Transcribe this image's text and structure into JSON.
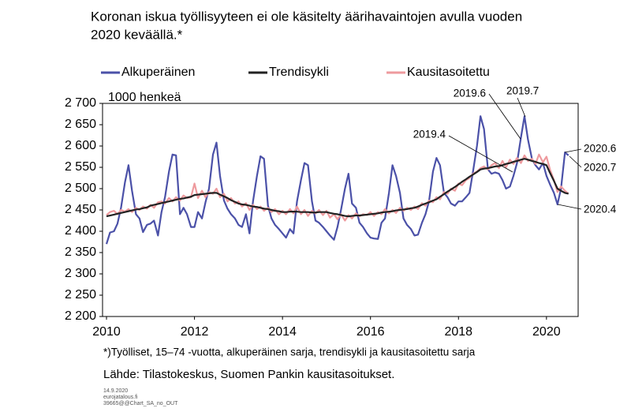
{
  "chart_data": {
    "type": "line",
    "title": [
      "Koronan iskua työllisyyteen ei ole käsitelty äärihavaintojen avulla vuoden",
      "2020 keväällä.*"
    ],
    "ylabel": "1000 henkeä",
    "footnote": "*)Työlliset, 15–74 -vuotta, alkuperäinen sarja, trendisykli ja kausitasoitettu sarja",
    "source": "Lähde: Tilastokeskus, Suomen Pankin kausitasoitukset.",
    "meta": [
      "14.9.2020",
      "eurojatalous.fi",
      "39665@@Chart_SA_no_OUT"
    ],
    "xlim": [
      2009.91,
      2020.72
    ],
    "xticks": [
      2010,
      2012,
      2014,
      2016,
      2018,
      2020
    ],
    "ylim": [
      2200,
      2700
    ],
    "yticks": [
      {
        "value": 2200,
        "label": "2 200"
      },
      {
        "value": 2250,
        "label": "2 250"
      },
      {
        "value": 2300,
        "label": "2 300"
      },
      {
        "value": 2350,
        "label": "2 350"
      },
      {
        "value": 2400,
        "label": "2 400"
      },
      {
        "value": 2450,
        "label": "2 450"
      },
      {
        "value": 2500,
        "label": "2 500"
      },
      {
        "value": 2550,
        "label": "2 550"
      },
      {
        "value": 2600,
        "label": "2 600"
      },
      {
        "value": 2650,
        "label": "2 650"
      },
      {
        "value": 2700,
        "label": "2 700"
      }
    ],
    "grid": false,
    "legend": "top",
    "annotations": [
      "2019.6",
      "2019.7",
      "2019.4",
      "2020.6",
      "2020.7",
      "2020.4"
    ],
    "x": [
      2010.0,
      2010.08,
      2010.17,
      2010.25,
      2010.33,
      2010.42,
      2010.5,
      2010.58,
      2010.67,
      2010.75,
      2010.83,
      2010.92,
      2011.0,
      2011.08,
      2011.17,
      2011.25,
      2011.33,
      2011.42,
      2011.5,
      2011.58,
      2011.67,
      2011.75,
      2011.83,
      2011.92,
      2012.0,
      2012.08,
      2012.17,
      2012.25,
      2012.33,
      2012.42,
      2012.5,
      2012.58,
      2012.67,
      2012.75,
      2012.83,
      2012.92,
      2013.0,
      2013.08,
      2013.17,
      2013.25,
      2013.33,
      2013.42,
      2013.5,
      2013.58,
      2013.67,
      2013.75,
      2013.83,
      2013.92,
      2014.0,
      2014.08,
      2014.17,
      2014.25,
      2014.33,
      2014.42,
      2014.5,
      2014.58,
      2014.67,
      2014.75,
      2014.83,
      2014.92,
      2015.0,
      2015.08,
      2015.17,
      2015.25,
      2015.33,
      2015.42,
      2015.5,
      2015.58,
      2015.67,
      2015.75,
      2015.83,
      2015.92,
      2016.0,
      2016.08,
      2016.17,
      2016.25,
      2016.33,
      2016.42,
      2016.5,
      2016.58,
      2016.67,
      2016.75,
      2016.83,
      2016.92,
      2017.0,
      2017.08,
      2017.17,
      2017.25,
      2017.33,
      2017.42,
      2017.5,
      2017.58,
      2017.67,
      2017.75,
      2017.83,
      2017.92,
      2018.0,
      2018.08,
      2018.17,
      2018.25,
      2018.33,
      2018.42,
      2018.5,
      2018.58,
      2018.67,
      2018.75,
      2018.83,
      2018.92,
      2019.0,
      2019.08,
      2019.17,
      2019.25,
      2019.33,
      2019.42,
      2019.5,
      2019.58,
      2019.67,
      2019.75,
      2019.83,
      2019.92,
      2020.0,
      2020.08,
      2020.17,
      2020.25,
      2020.33,
      2020.42,
      2020.5
    ],
    "series": [
      {
        "name": "Alkuperäinen",
        "color": "#4b51a8",
        "values": [
          2370,
          2397,
          2400,
          2418,
          2455,
          2515,
          2555,
          2495,
          2440,
          2430,
          2398,
          2415,
          2418,
          2425,
          2390,
          2445,
          2480,
          2540,
          2580,
          2578,
          2440,
          2455,
          2440,
          2410,
          2410,
          2445,
          2430,
          2468,
          2500,
          2580,
          2608,
          2530,
          2472,
          2453,
          2440,
          2430,
          2415,
          2410,
          2440,
          2395,
          2470,
          2530,
          2576,
          2570,
          2460,
          2430,
          2415,
          2405,
          2395,
          2385,
          2405,
          2395,
          2470,
          2520,
          2560,
          2555,
          2470,
          2425,
          2420,
          2410,
          2400,
          2390,
          2380,
          2410,
          2450,
          2500,
          2535,
          2465,
          2455,
          2420,
          2410,
          2395,
          2385,
          2383,
          2382,
          2420,
          2430,
          2490,
          2555,
          2530,
          2490,
          2430,
          2415,
          2405,
          2390,
          2392,
          2420,
          2440,
          2470,
          2540,
          2572,
          2555,
          2490,
          2480,
          2465,
          2460,
          2470,
          2470,
          2480,
          2490,
          2540,
          2600,
          2670,
          2640,
          2545,
          2535,
          2538,
          2535,
          2520,
          2500,
          2505,
          2530,
          2560,
          2620,
          2670,
          2615,
          2570,
          2555,
          2545,
          2560,
          2530,
          2510,
          2490,
          2463,
          2500,
          2585,
          2578
        ]
      },
      {
        "name": "Trendisykli",
        "color": "#222222",
        "values": [
          2435,
          2437,
          2439,
          2441,
          2443,
          2445,
          2447,
          2449,
          2451,
          2452,
          2454,
          2456,
          2460,
          2462,
          2464,
          2466,
          2468,
          2470,
          2472,
          2474,
          2476,
          2477,
          2479,
          2481,
          2485,
          2486,
          2487,
          2488,
          2489,
          2490,
          2490,
          2486,
          2482,
          2478,
          2473,
          2469,
          2465,
          2463,
          2462,
          2460,
          2458,
          2457,
          2455,
          2453,
          2452,
          2450,
          2448,
          2447,
          2445,
          2445,
          2446,
          2446,
          2446,
          2445,
          2445,
          2445,
          2444,
          2444,
          2445,
          2445,
          2445,
          2443,
          2441,
          2440,
          2438,
          2436,
          2435,
          2436,
          2437,
          2437,
          2438,
          2439,
          2440,
          2441,
          2442,
          2444,
          2445,
          2446,
          2447,
          2449,
          2450,
          2451,
          2452,
          2454,
          2455,
          2458,
          2462,
          2465,
          2468,
          2472,
          2475,
          2481,
          2487,
          2493,
          2498,
          2504,
          2510,
          2516,
          2522,
          2528,
          2533,
          2539,
          2545,
          2547,
          2548,
          2550,
          2552,
          2553,
          2555,
          2558,
          2560,
          2563,
          2565,
          2568,
          2570,
          2568,
          2565,
          2563,
          2560,
          2558,
          2555,
          2537,
          2518,
          2500,
          2495,
          2490,
          2488
        ]
      },
      {
        "name": "Kausitasoitettu",
        "color": "#ee9a9e",
        "values": [
          2438,
          2445,
          2448,
          2440,
          2450,
          2446,
          2452,
          2445,
          2455,
          2450,
          2458,
          2453,
          2462,
          2455,
          2468,
          2470,
          2465,
          2478,
          2470,
          2480,
          2472,
          2484,
          2478,
          2480,
          2512,
          2478,
          2495,
          2480,
          2492,
          2488,
          2500,
          2480,
          2488,
          2470,
          2478,
          2465,
          2470,
          2458,
          2466,
          2450,
          2462,
          2452,
          2458,
          2448,
          2455,
          2445,
          2452,
          2440,
          2448,
          2440,
          2452,
          2442,
          2458,
          2440,
          2450,
          2436,
          2448,
          2442,
          2450,
          2438,
          2448,
          2432,
          2440,
          2428,
          2440,
          2425,
          2438,
          2430,
          2442,
          2435,
          2440,
          2438,
          2445,
          2436,
          2445,
          2440,
          2452,
          2442,
          2450,
          2443,
          2455,
          2448,
          2455,
          2450,
          2458,
          2452,
          2466,
          2460,
          2472,
          2468,
          2480,
          2475,
          2492,
          2488,
          2500,
          2495,
          2512,
          2508,
          2520,
          2525,
          2535,
          2540,
          2548,
          2552,
          2545,
          2555,
          2560,
          2548,
          2565,
          2550,
          2568,
          2558,
          2572,
          2560,
          2578,
          2565,
          2570,
          2558,
          2580,
          2562,
          2575,
          2545,
          2520,
          2492,
          2505,
          2495,
          2488
        ]
      }
    ]
  }
}
